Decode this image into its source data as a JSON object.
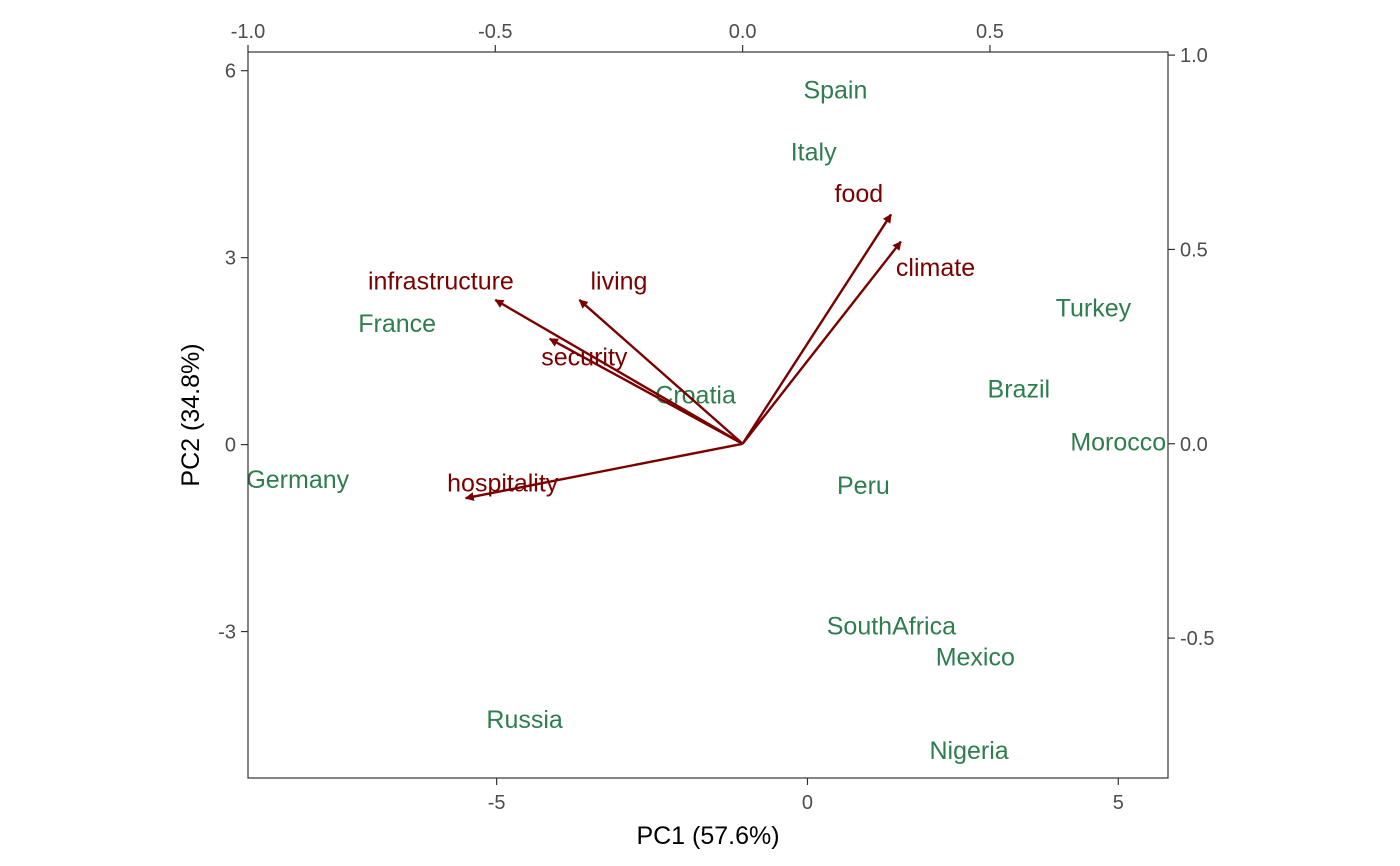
{
  "chart_data": {
    "type": "scatter",
    "subtype": "pca-biplot",
    "xlabel": "PC1 (57.6%)",
    "ylabel": "PC2 (34.8%)",
    "xlim": [
      -9,
      5.8
    ],
    "ylim": [
      -5.35,
      6.3
    ],
    "secondary_xlim": [
      -1.0,
      0.86
    ],
    "secondary_ylim": [
      -0.86,
      1.008
    ],
    "x_ticks": [
      -5,
      0,
      5
    ],
    "y_ticks": [
      -3,
      0,
      3,
      6
    ],
    "x_tick_labels": [
      "-5",
      "0",
      "5"
    ],
    "y_tick_labels": [
      "-3",
      "0",
      "3",
      "6"
    ],
    "secondary_x_ticks": [
      -1.0,
      -0.5,
      0.0,
      0.5
    ],
    "secondary_x_tick_labels": [
      "-1.0",
      "-0.5",
      "0.0",
      "0.5"
    ],
    "secondary_y_ticks": [
      -0.5,
      0.0,
      0.5,
      1.0
    ],
    "secondary_y_tick_labels": [
      "-0.5",
      "0.0",
      "0.5",
      "1.0"
    ],
    "grid": false,
    "observations": [
      {
        "label": "Spain",
        "x": 0.45,
        "y": 5.7
      },
      {
        "label": "Italy",
        "x": 0.1,
        "y": 4.7
      },
      {
        "label": "Turkey",
        "x": 4.6,
        "y": 2.2
      },
      {
        "label": "France",
        "x": -6.6,
        "y": 1.95
      },
      {
        "label": "Brazil",
        "x": 3.4,
        "y": 0.9
      },
      {
        "label": "Croatia",
        "x": -1.8,
        "y": 0.8
      },
      {
        "label": "Morocco",
        "x": 5.0,
        "y": 0.05
      },
      {
        "label": "Germany",
        "x": -8.2,
        "y": -0.55
      },
      {
        "label": "Peru",
        "x": 0.9,
        "y": -0.65
      },
      {
        "label": "SouthAfrica",
        "x": 1.35,
        "y": -2.9
      },
      {
        "label": "Mexico",
        "x": 2.7,
        "y": -3.4
      },
      {
        "label": "Russia",
        "x": -4.55,
        "y": -4.4
      },
      {
        "label": "Nigeria",
        "x": 2.6,
        "y": -4.9
      }
    ],
    "variables": [
      {
        "label": "food",
        "x": 0.3,
        "y": 0.59
      },
      {
        "label": "climate",
        "x": 0.32,
        "y": 0.52
      },
      {
        "label": "infrastructure",
        "x": -0.5,
        "y": 0.37
      },
      {
        "label": "living",
        "x": -0.33,
        "y": 0.37
      },
      {
        "label": "security",
        "x": -0.39,
        "y": 0.27
      },
      {
        "label": "hospitality",
        "x": -0.56,
        "y": -0.14
      }
    ],
    "variable_label_positions": [
      {
        "label": "food",
        "x": 0.235,
        "y": 0.645
      },
      {
        "label": "climate",
        "x": 0.39,
        "y": 0.455
      },
      {
        "label": "infrastructure",
        "x": -0.61,
        "y": 0.42
      },
      {
        "label": "living",
        "x": -0.25,
        "y": 0.42
      },
      {
        "label": "security",
        "x": -0.32,
        "y": 0.225
      },
      {
        "label": "hospitality",
        "x": -0.485,
        "y": -0.1
      }
    ],
    "colors": {
      "observations": "#2e7d4f",
      "variables": "#7a0000"
    }
  }
}
